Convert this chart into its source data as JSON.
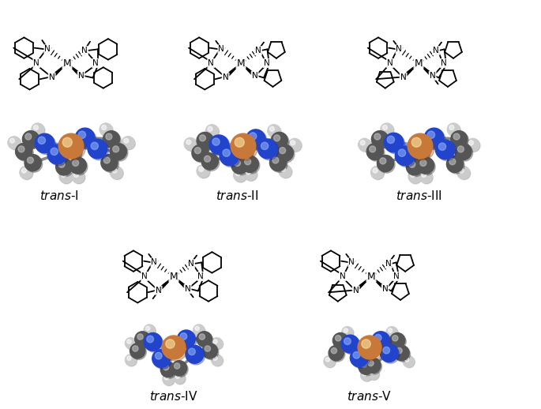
{
  "labels": [
    "trans-I",
    "trans-II",
    "trans-III",
    "trans-IV",
    "trans-V"
  ],
  "colors": {
    "metal": "#c8793a",
    "nitrogen": "#2244cc",
    "carbon": "#555555",
    "hydrogen": "#cccccc",
    "bond_color": "#8899cc",
    "cn_bond": "#888888",
    "h_bond": "#aaaaaa",
    "black": "#000000",
    "white": "#ffffff"
  },
  "figsize": [
    6.85,
    5.18
  ],
  "dpi": 100
}
